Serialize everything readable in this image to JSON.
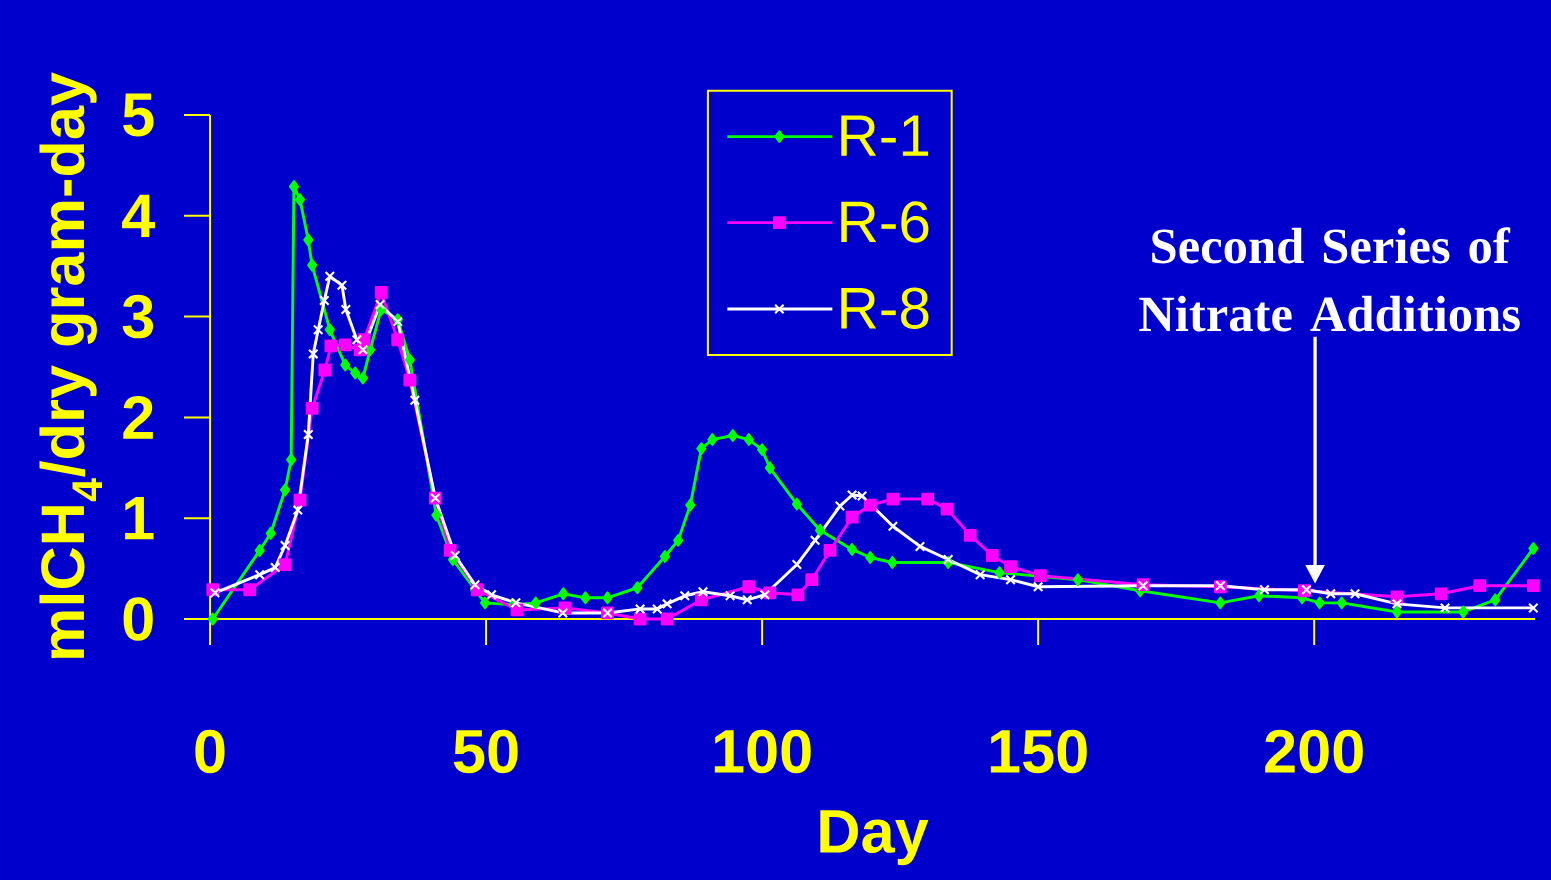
{
  "chart_data": {
    "type": "line",
    "xlabel": "Day",
    "ylabel": "mlCH$_{4}$/dry gram-day",
    "xlim": [
      0,
      240
    ],
    "ylim": [
      0,
      5
    ],
    "xticks": [
      0,
      50,
      100,
      150,
      200
    ],
    "yticks": [
      0,
      1,
      2,
      3,
      4,
      5
    ],
    "legend": "top",
    "annotations": [
      "Second Series of Nitrate Additions"
    ],
    "series": [
      {
        "name": "R-1",
        "color": "#00ff00",
        "marker": "diamond",
        "x": [
          0.5,
          9,
          11,
          13.6,
          14.7,
          15.2,
          16.3,
          17.8,
          18.5,
          21.7,
          24.5,
          26.3,
          27.7,
          29,
          31,
          34,
          36.2,
          41,
          44,
          48,
          49.8,
          55,
          59,
          64,
          68,
          72,
          77.4,
          82.4,
          84.8,
          87,
          89,
          91,
          94.7,
          97.6,
          100,
          101.4,
          106.3,
          110.5,
          116.3,
          119.6,
          123.6,
          133.7,
          143,
          157.2,
          168.5,
          183,
          190,
          197.8,
          201,
          205,
          215,
          227,
          232.8,
          239.7
        ],
        "values": [
          0.0,
          0.68,
          0.85,
          1.28,
          1.58,
          4.29,
          4.16,
          3.76,
          3.51,
          2.87,
          2.52,
          2.44,
          2.39,
          2.67,
          3.07,
          2.97,
          2.57,
          1.03,
          0.59,
          0.29,
          0.16,
          0.14,
          0.16,
          0.25,
          0.21,
          0.21,
          0.31,
          0.62,
          0.78,
          1.13,
          1.69,
          1.78,
          1.82,
          1.78,
          1.68,
          1.5,
          1.14,
          0.88,
          0.69,
          0.61,
          0.56,
          0.56,
          0.46,
          0.39,
          0.28,
          0.16,
          0.23,
          0.21,
          0.16,
          0.16,
          0.07,
          0.07,
          0.19,
          0.7
        ]
      },
      {
        "name": "R-6",
        "color": "#ff00ff",
        "marker": "square",
        "x": [
          0.5,
          7.2,
          13.6,
          16.3,
          18.5,
          20.8,
          21.9,
          24.5,
          27.2,
          27.9,
          31,
          34,
          36.2,
          40.8,
          43.5,
          48.4,
          55.6,
          64.3,
          72,
          77.9,
          82.8,
          89,
          97.6,
          101.4,
          106.5,
          109,
          112.3,
          116.3,
          119.6,
          123.7,
          130,
          133.5,
          137.7,
          141.7,
          145,
          150.4,
          169,
          183,
          198.2,
          215,
          223,
          230,
          239.7
        ],
        "values": [
          0.29,
          0.29,
          0.54,
          1.18,
          2.09,
          2.47,
          2.71,
          2.72,
          2.67,
          2.77,
          3.24,
          2.77,
          2.37,
          1.2,
          0.68,
          0.29,
          0.09,
          0.11,
          0.06,
          0.0,
          0.0,
          0.19,
          0.32,
          0.26,
          0.24,
          0.39,
          0.68,
          1.01,
          1.13,
          1.19,
          1.19,
          1.09,
          0.83,
          0.63,
          0.52,
          0.43,
          0.34,
          0.32,
          0.28,
          0.22,
          0.25,
          0.33,
          0.33
        ]
      },
      {
        "name": "R-8",
        "color": "#ffffff",
        "marker": "cross",
        "x": [
          0.9,
          9,
          11.8,
          13.6,
          15.9,
          17.8,
          18.7,
          19.6,
          20.7,
          21.7,
          23.9,
          24.6,
          26.6,
          27.7,
          30.8,
          34,
          37.1,
          40.8,
          44.4,
          48,
          51,
          55.4,
          63.9,
          72,
          77.9,
          81,
          82.8,
          86,
          89.3,
          94.2,
          97.3,
          100.5,
          106.3,
          109.6,
          114.1,
          116.3,
          118.1,
          123.7,
          128.6,
          133.7,
          139.5,
          145,
          150,
          169,
          183,
          191,
          198.6,
          203,
          207.4,
          215,
          223.7,
          239.7
        ],
        "values": [
          0.26,
          0.44,
          0.51,
          0.73,
          1.08,
          1.83,
          2.63,
          2.87,
          3.16,
          3.4,
          3.31,
          3.07,
          2.77,
          2.67,
          3.12,
          2.95,
          2.17,
          1.2,
          0.63,
          0.34,
          0.24,
          0.16,
          0.06,
          0.06,
          0.1,
          0.1,
          0.15,
          0.23,
          0.27,
          0.23,
          0.19,
          0.24,
          0.54,
          0.78,
          1.12,
          1.23,
          1.22,
          0.92,
          0.72,
          0.59,
          0.44,
          0.39,
          0.32,
          0.33,
          0.33,
          0.29,
          0.29,
          0.25,
          0.25,
          0.15,
          0.11,
          0.11
        ]
      }
    ]
  }
}
